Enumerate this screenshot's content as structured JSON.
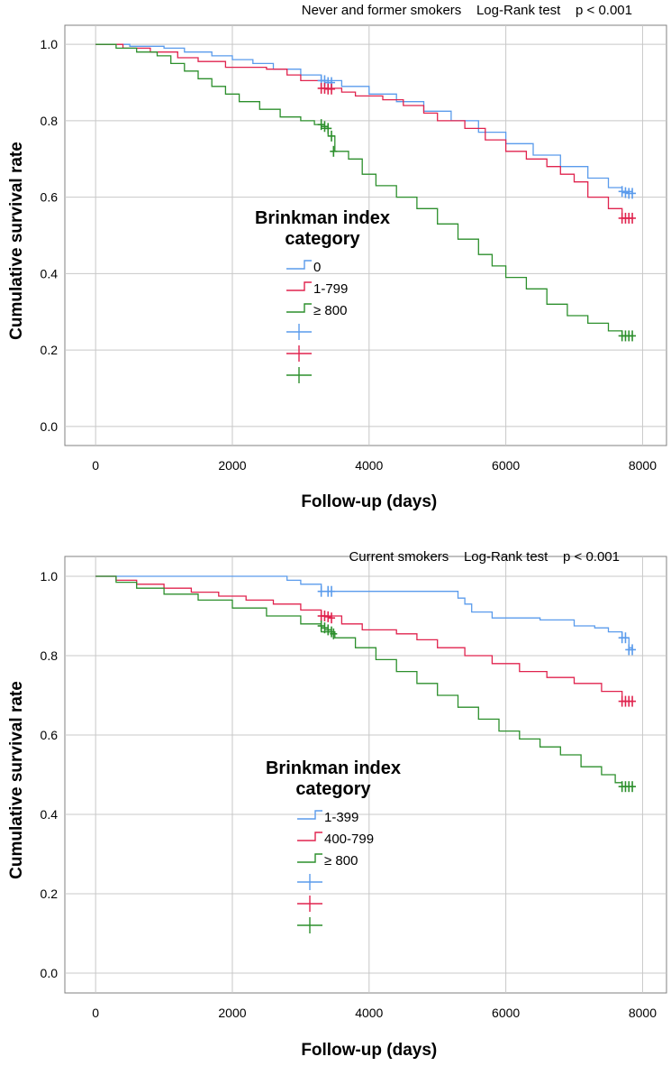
{
  "colors": {
    "blue": "#5a9bec",
    "red": "#e0234e",
    "green": "#2c8f2c"
  },
  "chart_data": [
    {
      "type": "line",
      "subtype": "kaplan-meier",
      "title": "Never and former smokers    Log-Rank test    p < 0.001",
      "xlabel": "Follow-up (days)",
      "ylabel": "Cumulative survival rate",
      "xlim": [
        -450,
        8350
      ],
      "ylim": [
        -0.05,
        1.05
      ],
      "xticks": [
        0,
        2000,
        4000,
        6000,
        8000
      ],
      "xtick_labels": [
        "0",
        "2000",
        "4000",
        "6000",
        "8000"
      ],
      "yticks": [
        0.0,
        0.2,
        0.4,
        0.6,
        0.8,
        1.0
      ],
      "ytick_labels": [
        "0.0",
        "0.2",
        "0.4",
        "0.6",
        "0.8",
        "1.0"
      ],
      "legend_title": "Brinkman index category",
      "legend_title_lines": [
        "Brinkman index",
        "category"
      ],
      "legend_position": "center-left",
      "series": [
        {
          "name": "0",
          "color": "blue",
          "x": [
            0,
            500,
            1000,
            1300,
            1700,
            2000,
            2300,
            2600,
            3000,
            3300,
            3600,
            4000,
            4400,
            4800,
            5200,
            5600,
            6000,
            6400,
            6800,
            7200,
            7500,
            7700,
            7850
          ],
          "y": [
            1.0,
            0.995,
            0.99,
            0.98,
            0.97,
            0.96,
            0.95,
            0.935,
            0.92,
            0.905,
            0.89,
            0.87,
            0.85,
            0.825,
            0.8,
            0.77,
            0.74,
            0.71,
            0.68,
            0.65,
            0.625,
            0.615,
            0.61
          ],
          "censor_x": [
            3300,
            3350,
            3400,
            3450,
            7700,
            7750,
            7800,
            7850
          ],
          "censor_y": [
            0.905,
            0.905,
            0.9,
            0.9,
            0.615,
            0.612,
            0.61,
            0.61
          ]
        },
        {
          "name": "1-799",
          "color": "red",
          "x": [
            0,
            400,
            800,
            1200,
            1500,
            1900,
            2500,
            2800,
            3000,
            3300,
            3600,
            3800,
            4200,
            4500,
            4800,
            5000,
            5400,
            5700,
            6000,
            6300,
            6600,
            6800,
            7000,
            7200,
            7500,
            7700,
            7850
          ],
          "y": [
            1.0,
            0.99,
            0.98,
            0.965,
            0.955,
            0.94,
            0.935,
            0.92,
            0.905,
            0.885,
            0.875,
            0.865,
            0.855,
            0.84,
            0.82,
            0.8,
            0.78,
            0.75,
            0.72,
            0.7,
            0.68,
            0.66,
            0.64,
            0.6,
            0.57,
            0.545,
            0.545
          ],
          "censor_x": [
            3300,
            3350,
            3400,
            3450,
            7700,
            7750,
            7800,
            7850
          ],
          "censor_y": [
            0.885,
            0.885,
            0.883,
            0.883,
            0.545,
            0.545,
            0.545,
            0.545
          ]
        },
        {
          "name": "≥ 800",
          "color": "green",
          "x": [
            0,
            300,
            600,
            900,
            1100,
            1300,
            1500,
            1700,
            1900,
            2100,
            2400,
            2700,
            3000,
            3200,
            3300,
            3400,
            3500,
            3700,
            3900,
            4100,
            4400,
            4700,
            5000,
            5300,
            5600,
            5800,
            6000,
            6300,
            6600,
            6900,
            7200,
            7500,
            7700,
            7850
          ],
          "y": [
            1.0,
            0.99,
            0.98,
            0.97,
            0.95,
            0.93,
            0.91,
            0.89,
            0.87,
            0.85,
            0.83,
            0.81,
            0.8,
            0.79,
            0.78,
            0.76,
            0.72,
            0.7,
            0.66,
            0.63,
            0.6,
            0.57,
            0.53,
            0.49,
            0.45,
            0.42,
            0.39,
            0.36,
            0.32,
            0.29,
            0.27,
            0.25,
            0.237,
            0.237
          ],
          "censor_x": [
            3300,
            3350,
            3400,
            3450,
            3480,
            7700,
            7750,
            7800,
            7850
          ],
          "censor_y": [
            0.79,
            0.785,
            0.78,
            0.76,
            0.72,
            0.237,
            0.237,
            0.237,
            0.237
          ]
        }
      ]
    },
    {
      "type": "line",
      "subtype": "kaplan-meier",
      "title": "Current smokers    Log-Rank test    p < 0.001",
      "xlabel": "Follow-up (days)",
      "ylabel": "Cumulative survival rate",
      "xlim": [
        -450,
        8350
      ],
      "ylim": [
        -0.05,
        1.05
      ],
      "xticks": [
        0,
        2000,
        4000,
        6000,
        8000
      ],
      "xtick_labels": [
        "0",
        "2000",
        "4000",
        "6000",
        "8000"
      ],
      "yticks": [
        0.0,
        0.2,
        0.4,
        0.6,
        0.8,
        1.0
      ],
      "ytick_labels": [
        "0.0",
        "0.2",
        "0.4",
        "0.6",
        "0.8",
        "1.0"
      ],
      "legend_title": "Brinkman index category",
      "legend_title_lines": [
        "Brinkman index",
        "category"
      ],
      "legend_position": "center-left",
      "series": [
        {
          "name": "1-399",
          "color": "blue",
          "x": [
            0,
            2800,
            3000,
            3300,
            4900,
            5300,
            5400,
            5500,
            5800,
            6500,
            7000,
            7300,
            7500,
            7700,
            7800,
            7850
          ],
          "y": [
            1.0,
            0.99,
            0.98,
            0.962,
            0.962,
            0.945,
            0.93,
            0.91,
            0.895,
            0.89,
            0.875,
            0.87,
            0.86,
            0.845,
            0.82,
            0.815
          ],
          "censor_x": [
            3300,
            3400,
            3450,
            7700,
            7750,
            7800,
            7850
          ],
          "censor_y": [
            0.962,
            0.962,
            0.962,
            0.845,
            0.845,
            0.815,
            0.815
          ]
        },
        {
          "name": "400-799",
          "color": "red",
          "x": [
            0,
            300,
            600,
            1000,
            1400,
            1800,
            2200,
            2600,
            3000,
            3300,
            3600,
            3900,
            4400,
            4700,
            5000,
            5400,
            5800,
            6200,
            6600,
            7000,
            7400,
            7700,
            7850
          ],
          "y": [
            1.0,
            0.99,
            0.98,
            0.97,
            0.96,
            0.95,
            0.94,
            0.93,
            0.915,
            0.9,
            0.88,
            0.865,
            0.855,
            0.84,
            0.82,
            0.8,
            0.78,
            0.76,
            0.745,
            0.73,
            0.71,
            0.685,
            0.685
          ],
          "censor_x": [
            3300,
            3350,
            3400,
            3450,
            7700,
            7750,
            7800,
            7850
          ],
          "censor_y": [
            0.9,
            0.9,
            0.898,
            0.895,
            0.685,
            0.685,
            0.685,
            0.685
          ]
        },
        {
          "name": "≥ 800",
          "color": "green",
          "x": [
            0,
            300,
            600,
            1000,
            1500,
            2000,
            2500,
            3000,
            3300,
            3500,
            3800,
            4100,
            4400,
            4700,
            5000,
            5300,
            5600,
            5900,
            6200,
            6500,
            6800,
            7100,
            7400,
            7600,
            7700,
            7850
          ],
          "y": [
            1.0,
            0.985,
            0.97,
            0.955,
            0.94,
            0.92,
            0.9,
            0.88,
            0.86,
            0.845,
            0.82,
            0.79,
            0.76,
            0.73,
            0.7,
            0.67,
            0.64,
            0.61,
            0.59,
            0.57,
            0.55,
            0.52,
            0.5,
            0.48,
            0.47,
            0.47
          ],
          "censor_x": [
            3300,
            3350,
            3400,
            3450,
            3480,
            7700,
            7750,
            7800,
            7850
          ],
          "censor_y": [
            0.875,
            0.87,
            0.865,
            0.86,
            0.855,
            0.47,
            0.47,
            0.47,
            0.47
          ]
        }
      ]
    }
  ]
}
